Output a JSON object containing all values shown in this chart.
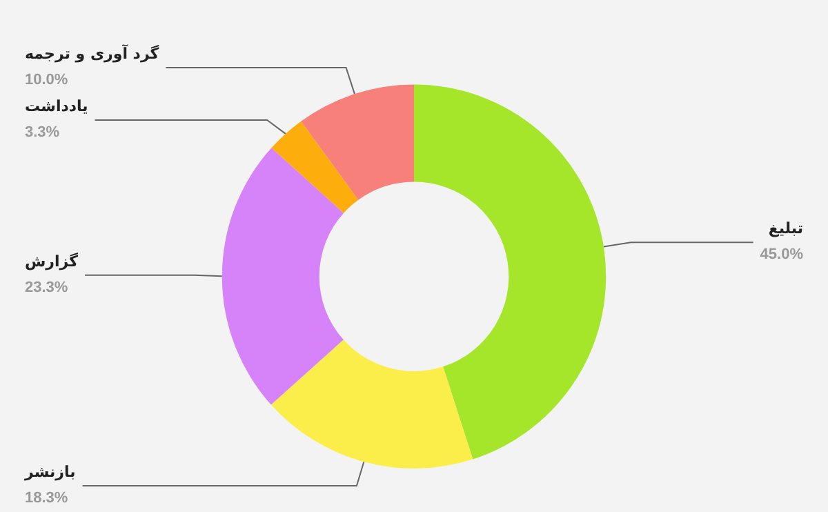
{
  "chart_data": {
    "type": "donut",
    "categories": [
      "تبلیغ",
      "بازنشر",
      "گزارش",
      "یادداشت",
      "گرد آوری و ترجمه"
    ],
    "values": [
      45.0,
      18.3,
      23.3,
      3.3,
      10.0
    ],
    "value_labels": [
      "45.0%",
      "18.3%",
      "23.3%",
      "3.3%",
      "10.0%"
    ],
    "colors": [
      "#a5e62a",
      "#fcee4a",
      "#d683fa",
      "#fdad0c",
      "#f7807a"
    ],
    "legend": false
  }
}
